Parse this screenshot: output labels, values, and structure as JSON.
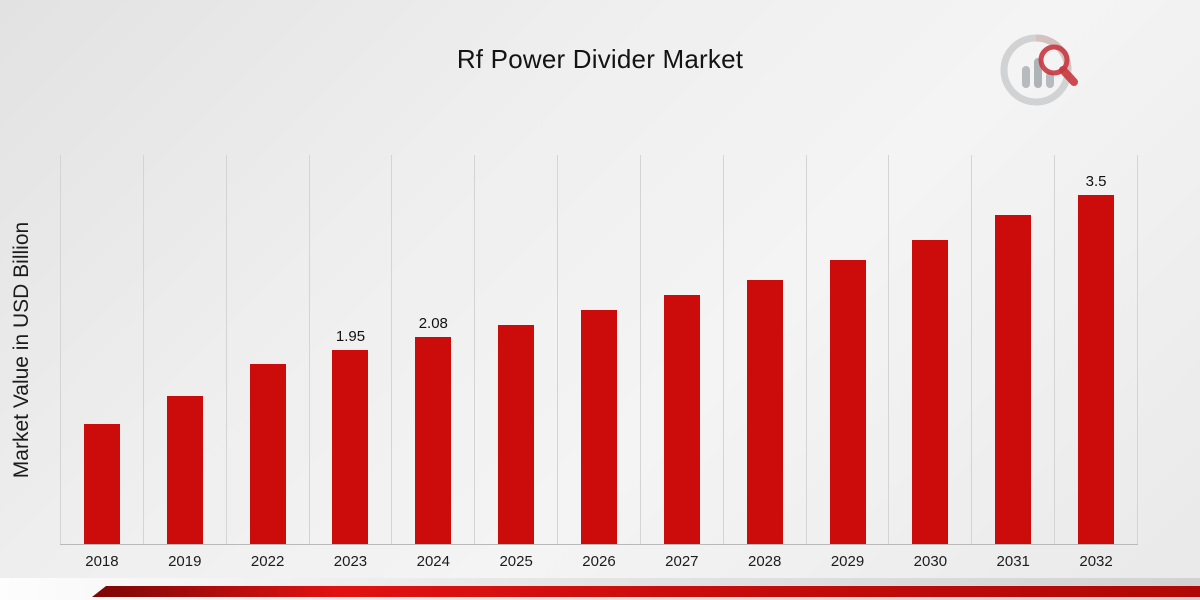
{
  "header": {
    "title": "Rf Power Divider Market"
  },
  "axes": {
    "y_label": "Market Value in USD Billion"
  },
  "branding": {
    "logo_name": "market-research-logo"
  },
  "chart_data": {
    "type": "bar",
    "title": "Rf Power Divider Market",
    "xlabel": "",
    "ylabel": "Market Value in USD Billion",
    "categories": [
      "2018",
      "2019",
      "2022",
      "2023",
      "2024",
      "2025",
      "2026",
      "2027",
      "2028",
      "2029",
      "2030",
      "2031",
      "2032"
    ],
    "values": [
      1.2,
      1.48,
      1.8,
      1.95,
      2.08,
      2.2,
      2.35,
      2.5,
      2.65,
      2.85,
      3.05,
      3.3,
      3.5
    ],
    "point_labels": [
      "",
      "",
      "",
      "1.95",
      "2.08",
      "",
      "",
      "",
      "",
      "",
      "",
      "",
      "3.5"
    ],
    "bar_color": "#cc0b0b",
    "ylim": [
      0,
      3.9
    ],
    "grid": "vertical-only",
    "legend": "none"
  }
}
